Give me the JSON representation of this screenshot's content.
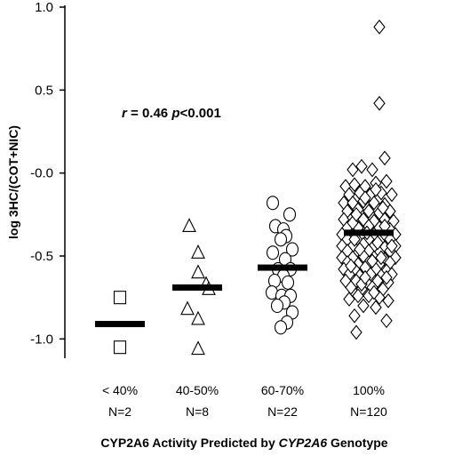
{
  "chart_data": {
    "type": "scatter",
    "title": "",
    "ylabel": "log 3HC/(COT+NIC)",
    "xlabel_prefix": "CYP2A6 Activity Predicted by ",
    "xlabel_italic": "CYP2A6",
    "xlabel_suffix": " Genotype",
    "ylim": [
      -1.1,
      1.0
    ],
    "yticks": [
      1.0,
      0.5,
      -0.0,
      -0.5,
      -1.0
    ],
    "ytick_labels": [
      "1.0",
      "0.5",
      "-0.0",
      "-0.5",
      "-1.0"
    ],
    "grid": false,
    "annotation": {
      "r_symbol": "r",
      "r_text": " = 0.46 ",
      "p_symbol": "p",
      "p_text": "<0.001"
    },
    "groups": [
      {
        "label": "< 40%",
        "n_label": "N=2",
        "marker": "square",
        "mean": -0.91,
        "points": [
          {
            "dx": 0.0,
            "y": -0.75
          },
          {
            "dx": 0.0,
            "y": -1.05
          }
        ]
      },
      {
        "label": "40-50%",
        "n_label": "N=8",
        "marker": "triangle",
        "mean": -0.69,
        "points": [
          {
            "dx": -0.45,
            "y": -0.32
          },
          {
            "dx": 0.05,
            "y": -0.48
          },
          {
            "dx": 0.05,
            "y": -0.6
          },
          {
            "dx": 0.5,
            "y": -0.67
          },
          {
            "dx": 0.65,
            "y": -0.7
          },
          {
            "dx": -0.55,
            "y": -0.82
          },
          {
            "dx": 0.05,
            "y": -0.88
          },
          {
            "dx": 0.05,
            "y": -1.06
          }
        ]
      },
      {
        "label": "60-70%",
        "n_label": "N=22",
        "marker": "circle",
        "mean": -0.57,
        "points": [
          {
            "dx": -0.55,
            "y": -0.18
          },
          {
            "dx": 0.4,
            "y": -0.25
          },
          {
            "dx": -0.4,
            "y": -0.32
          },
          {
            "dx": 0.05,
            "y": -0.34
          },
          {
            "dx": 0.2,
            "y": -0.38
          },
          {
            "dx": -0.1,
            "y": -0.4
          },
          {
            "dx": 0.55,
            "y": -0.46
          },
          {
            "dx": -0.55,
            "y": -0.48
          },
          {
            "dx": 0.15,
            "y": -0.52
          },
          {
            "dx": -0.25,
            "y": -0.58
          },
          {
            "dx": 0.45,
            "y": -0.58
          },
          {
            "dx": 0.05,
            "y": -0.62
          },
          {
            "dx": -0.45,
            "y": -0.65
          },
          {
            "dx": 0.3,
            "y": -0.66
          },
          {
            "dx": -0.6,
            "y": -0.72
          },
          {
            "dx": -0.05,
            "y": -0.74
          },
          {
            "dx": 0.45,
            "y": -0.74
          },
          {
            "dx": 0.1,
            "y": -0.78
          },
          {
            "dx": -0.3,
            "y": -0.8
          },
          {
            "dx": 0.55,
            "y": -0.84
          },
          {
            "dx": 0.25,
            "y": -0.9
          },
          {
            "dx": -0.1,
            "y": -0.93
          }
        ]
      },
      {
        "label": "100%",
        "n_label": "N=120",
        "marker": "diamond",
        "mean": -0.36,
        "points": [
          {
            "dx": 0.6,
            "y": 0.88
          },
          {
            "dx": 0.6,
            "y": 0.42
          },
          {
            "dx": 0.9,
            "y": 0.09
          },
          {
            "dx": -0.9,
            "y": 0.02
          },
          {
            "dx": -0.4,
            "y": 0.04
          },
          {
            "dx": 0.2,
            "y": 0.02
          },
          {
            "dx": -1.3,
            "y": -0.08
          },
          {
            "dx": -0.8,
            "y": -0.07
          },
          {
            "dx": -0.2,
            "y": -0.08
          },
          {
            "dx": 0.4,
            "y": -0.06
          },
          {
            "dx": 1.0,
            "y": -0.05
          },
          {
            "dx": -1.1,
            "y": -0.13
          },
          {
            "dx": -0.5,
            "y": -0.12
          },
          {
            "dx": 0.1,
            "y": -0.13
          },
          {
            "dx": 0.7,
            "y": -0.12
          },
          {
            "dx": 1.3,
            "y": -0.13
          },
          {
            "dx": -1.4,
            "y": -0.18
          },
          {
            "dx": -0.9,
            "y": -0.18
          },
          {
            "dx": -0.3,
            "y": -0.17
          },
          {
            "dx": 0.3,
            "y": -0.18
          },
          {
            "dx": 0.9,
            "y": -0.19
          },
          {
            "dx": -1.2,
            "y": -0.23
          },
          {
            "dx": -0.6,
            "y": -0.22
          },
          {
            "dx": 0.0,
            "y": -0.23
          },
          {
            "dx": 0.6,
            "y": -0.24
          },
          {
            "dx": 1.2,
            "y": -0.23
          },
          {
            "dx": -1.4,
            "y": -0.28
          },
          {
            "dx": -0.9,
            "y": -0.27
          },
          {
            "dx": -0.3,
            "y": -0.28
          },
          {
            "dx": 0.3,
            "y": -0.29
          },
          {
            "dx": 0.9,
            "y": -0.28
          },
          {
            "dx": 1.4,
            "y": -0.29
          },
          {
            "dx": -1.2,
            "y": -0.33
          },
          {
            "dx": -0.6,
            "y": -0.33
          },
          {
            "dx": 0.0,
            "y": -0.32
          },
          {
            "dx": 0.6,
            "y": -0.33
          },
          {
            "dx": 1.2,
            "y": -0.34
          },
          {
            "dx": -1.5,
            "y": -0.37
          },
          {
            "dx": -0.9,
            "y": -0.37
          },
          {
            "dx": -0.3,
            "y": -0.38
          },
          {
            "dx": 0.3,
            "y": -0.37
          },
          {
            "dx": 0.9,
            "y": -0.38
          },
          {
            "dx": 1.5,
            "y": -0.37
          },
          {
            "dx": -1.2,
            "y": -0.4
          },
          {
            "dx": -0.6,
            "y": -0.41
          },
          {
            "dx": 0.0,
            "y": -0.4
          },
          {
            "dx": 0.6,
            "y": -0.41
          },
          {
            "dx": 1.2,
            "y": -0.4
          },
          {
            "dx": -1.5,
            "y": -0.44
          },
          {
            "dx": -0.9,
            "y": -0.44
          },
          {
            "dx": -0.3,
            "y": -0.43
          },
          {
            "dx": 0.3,
            "y": -0.44
          },
          {
            "dx": 0.9,
            "y": -0.45
          },
          {
            "dx": 1.5,
            "y": -0.44
          },
          {
            "dx": -1.2,
            "y": -0.47
          },
          {
            "dx": -0.6,
            "y": -0.48
          },
          {
            "dx": 0.0,
            "y": -0.47
          },
          {
            "dx": 0.6,
            "y": -0.48
          },
          {
            "dx": 1.2,
            "y": -0.47
          },
          {
            "dx": -1.5,
            "y": -0.51
          },
          {
            "dx": -0.9,
            "y": -0.51
          },
          {
            "dx": -0.3,
            "y": -0.5
          },
          {
            "dx": 0.3,
            "y": -0.51
          },
          {
            "dx": 0.9,
            "y": -0.52
          },
          {
            "dx": 1.5,
            "y": -0.51
          },
          {
            "dx": -1.2,
            "y": -0.54
          },
          {
            "dx": -0.6,
            "y": -0.55
          },
          {
            "dx": 0.0,
            "y": -0.54
          },
          {
            "dx": 0.6,
            "y": -0.55
          },
          {
            "dx": 1.2,
            "y": -0.54
          },
          {
            "dx": -1.4,
            "y": -0.58
          },
          {
            "dx": -0.8,
            "y": -0.58
          },
          {
            "dx": -0.2,
            "y": -0.57
          },
          {
            "dx": 0.4,
            "y": -0.58
          },
          {
            "dx": 1.0,
            "y": -0.59
          },
          {
            "dx": -1.1,
            "y": -0.61
          },
          {
            "dx": -0.5,
            "y": -0.62
          },
          {
            "dx": 0.1,
            "y": -0.61
          },
          {
            "dx": 0.7,
            "y": -0.62
          },
          {
            "dx": 1.3,
            "y": -0.61
          },
          {
            "dx": -1.3,
            "y": -0.65
          },
          {
            "dx": -0.7,
            "y": -0.65
          },
          {
            "dx": -0.1,
            "y": -0.66
          },
          {
            "dx": 0.5,
            "y": -0.65
          },
          {
            "dx": 1.1,
            "y": -0.66
          },
          {
            "dx": -1.0,
            "y": -0.69
          },
          {
            "dx": -0.4,
            "y": -0.7
          },
          {
            "dx": 0.2,
            "y": -0.69
          },
          {
            "dx": 0.8,
            "y": -0.7
          },
          {
            "dx": -0.6,
            "y": -0.74
          },
          {
            "dx": 0.0,
            "y": -0.74
          },
          {
            "dx": 0.6,
            "y": -0.75
          },
          {
            "dx": -1.1,
            "y": -0.76
          },
          {
            "dx": 1.1,
            "y": -0.77
          },
          {
            "dx": -0.3,
            "y": -0.8
          },
          {
            "dx": 0.4,
            "y": -0.81
          },
          {
            "dx": -0.8,
            "y": -0.86
          },
          {
            "dx": 1.0,
            "y": -0.89
          },
          {
            "dx": -0.7,
            "y": -0.96
          },
          {
            "dx": -0.9,
            "y": -0.3
          },
          {
            "dx": 0.9,
            "y": -0.32
          },
          {
            "dx": -0.1,
            "y": -0.36
          },
          {
            "dx": 0.5,
            "y": -0.42
          },
          {
            "dx": -0.5,
            "y": -0.46
          },
          {
            "dx": 0.2,
            "y": -0.53
          },
          {
            "dx": -0.7,
            "y": -0.25
          },
          {
            "dx": 0.8,
            "y": -0.21
          },
          {
            "dx": -0.2,
            "y": -0.15
          },
          {
            "dx": 0.4,
            "y": -0.1
          },
          {
            "dx": -1.0,
            "y": -0.56
          },
          {
            "dx": 1.0,
            "y": -0.63
          },
          {
            "dx": -0.4,
            "y": -0.67
          },
          {
            "dx": 0.3,
            "y": -0.72
          },
          {
            "dx": -0.2,
            "y": -0.63
          },
          {
            "dx": 0.7,
            "y": -0.51
          },
          {
            "dx": -0.8,
            "y": -0.4
          },
          {
            "dx": 1.3,
            "y": -0.44
          }
        ]
      }
    ]
  }
}
